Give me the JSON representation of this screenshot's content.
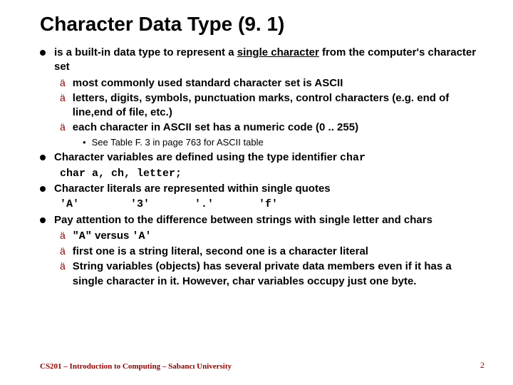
{
  "title": "Character Data Type (9. 1)",
  "bullets": {
    "p1": "is a built-in data type to represent a ",
    "p1u": "single character",
    "p1b": " from the computer's character set",
    "s1": "most commonly used standard character set is ASCII",
    "s2": "letters, digits, symbols, punctuation marks, control characters (e.g. end of line,end of file, etc.)",
    "s3": "each character in ASCII set has a numeric code (0 .. 255)",
    "ss1": "See Table F. 3 in page 763 for ASCII table",
    "p2a": "Character variables are defined using  the type identifier ",
    "p2code": "char",
    "p2line": "char a, ch, letter;",
    "p3": "Character literals are represented within single quotes",
    "p3line": "'A'        '3'       '.'       'f'",
    "p4": "Pay attention to the difference between strings with single letter and chars",
    "s4a": "\"A\"",
    "s4mid": " versus ",
    "s4b": "'A'",
    "s5": "first one is a string literal, second one is a character literal",
    "s6": "String variables (objects) has several private data members even if it has a single character in it. However, char variables occupy just one byte."
  },
  "footer": "CS201 – Introduction to Computing – Sabancı University",
  "pagenum": "2"
}
